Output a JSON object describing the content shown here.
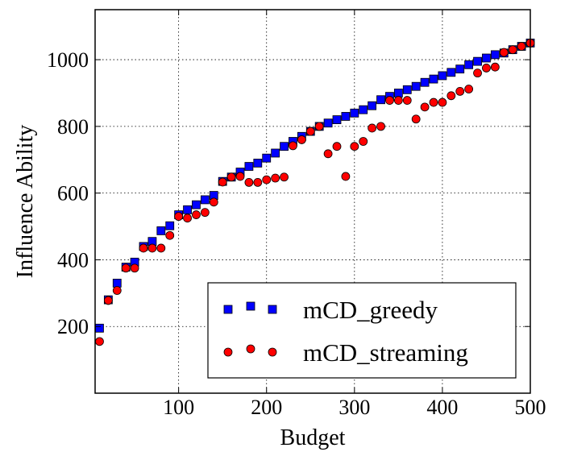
{
  "chart_data": {
    "type": "scatter",
    "xlabel": "Budget",
    "ylabel": "Influence Ability",
    "xlim": [
      5,
      500
    ],
    "ylim": [
      0,
      1150
    ],
    "xticks": [
      100,
      200,
      300,
      400,
      500
    ],
    "yticks": [
      200,
      400,
      600,
      800,
      1000
    ],
    "grid": true,
    "legend_position": "bottom-right",
    "series": [
      {
        "name": "mCD_greedy",
        "marker": "square",
        "color": "#0000ff",
        "x": [
          10,
          20,
          30,
          40,
          50,
          60,
          70,
          80,
          90,
          100,
          110,
          120,
          130,
          140,
          150,
          160,
          170,
          180,
          190,
          200,
          210,
          220,
          230,
          240,
          250,
          260,
          270,
          280,
          290,
          300,
          310,
          320,
          330,
          340,
          350,
          360,
          370,
          380,
          390,
          400,
          410,
          420,
          430,
          440,
          450,
          460,
          470,
          480,
          490,
          500
        ],
        "y": [
          195,
          280,
          330,
          378,
          393,
          440,
          455,
          487,
          502,
          535,
          550,
          565,
          580,
          593,
          635,
          648,
          663,
          680,
          690,
          705,
          720,
          740,
          755,
          770,
          785,
          800,
          810,
          820,
          830,
          840,
          850,
          862,
          880,
          890,
          900,
          910,
          920,
          932,
          942,
          952,
          962,
          972,
          985,
          995,
          1005,
          1015,
          1020,
          1030,
          1040,
          1050
        ]
      },
      {
        "name": "mCD_streaming",
        "marker": "circle",
        "color": "#ff0000",
        "x": [
          10,
          20,
          30,
          40,
          50,
          60,
          70,
          80,
          90,
          100,
          110,
          120,
          130,
          140,
          150,
          160,
          170,
          180,
          190,
          200,
          210,
          220,
          230,
          240,
          250,
          260,
          270,
          280,
          290,
          300,
          310,
          320,
          330,
          340,
          350,
          360,
          370,
          380,
          390,
          400,
          410,
          420,
          430,
          440,
          450,
          460,
          470,
          480,
          490,
          500
        ],
        "y": [
          155,
          278,
          308,
          375,
          375,
          435,
          435,
          435,
          473,
          530,
          525,
          535,
          542,
          573,
          633,
          648,
          650,
          632,
          632,
          640,
          645,
          648,
          742,
          760,
          785,
          800,
          718,
          740,
          650,
          740,
          755,
          795,
          800,
          878,
          878,
          878,
          822,
          858,
          872,
          872,
          892,
          905,
          912,
          960,
          975,
          978,
          1022,
          1030,
          1040,
          1050
        ]
      }
    ]
  }
}
